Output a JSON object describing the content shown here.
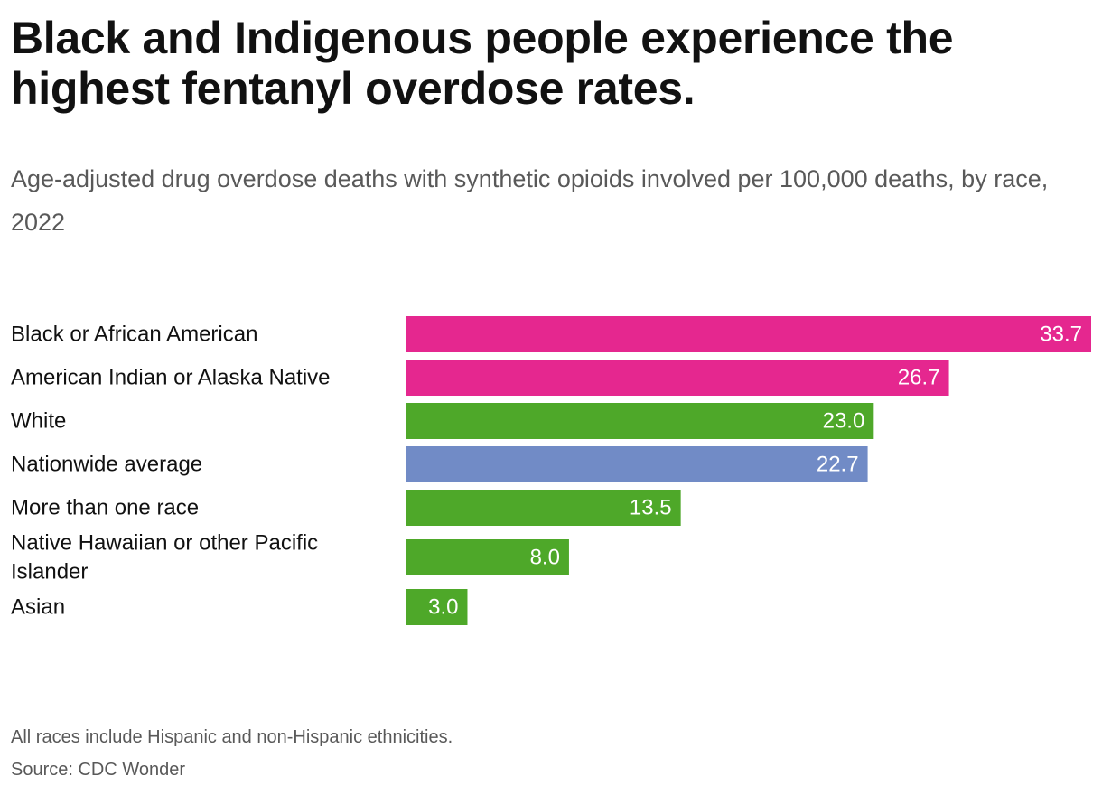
{
  "chart_data": {
    "type": "bar",
    "orientation": "horizontal",
    "title": "Black and Indigenous people experience the highest fentanyl overdose rates.",
    "subtitle": "Age-adjusted drug overdose deaths with synthetic opioids involved per 100,000 deaths, by race, 2022",
    "categories": [
      "Black or African American",
      "American Indian or Alaska Native",
      "White",
      "Nationwide average",
      "More than one race",
      "Native Hawaiian or other Pacific Islander",
      "Asian"
    ],
    "values": [
      33.7,
      26.7,
      23.0,
      22.7,
      13.5,
      8.0,
      3.0
    ],
    "value_labels": [
      "33.7",
      "26.7",
      "23.0",
      "22.7",
      "13.5",
      "8.0",
      "3.0"
    ],
    "colors": [
      "#e5278f",
      "#e5278f",
      "#4ea829",
      "#718bc6",
      "#4ea829",
      "#4ea829",
      "#4ea829"
    ],
    "xlim": [
      0,
      33.7
    ],
    "xlabel": "",
    "ylabel": "",
    "grid": false,
    "legend": "none"
  },
  "footnote": "All races include Hispanic and non-Hispanic ethnicities.",
  "source": "Source: CDC Wonder"
}
